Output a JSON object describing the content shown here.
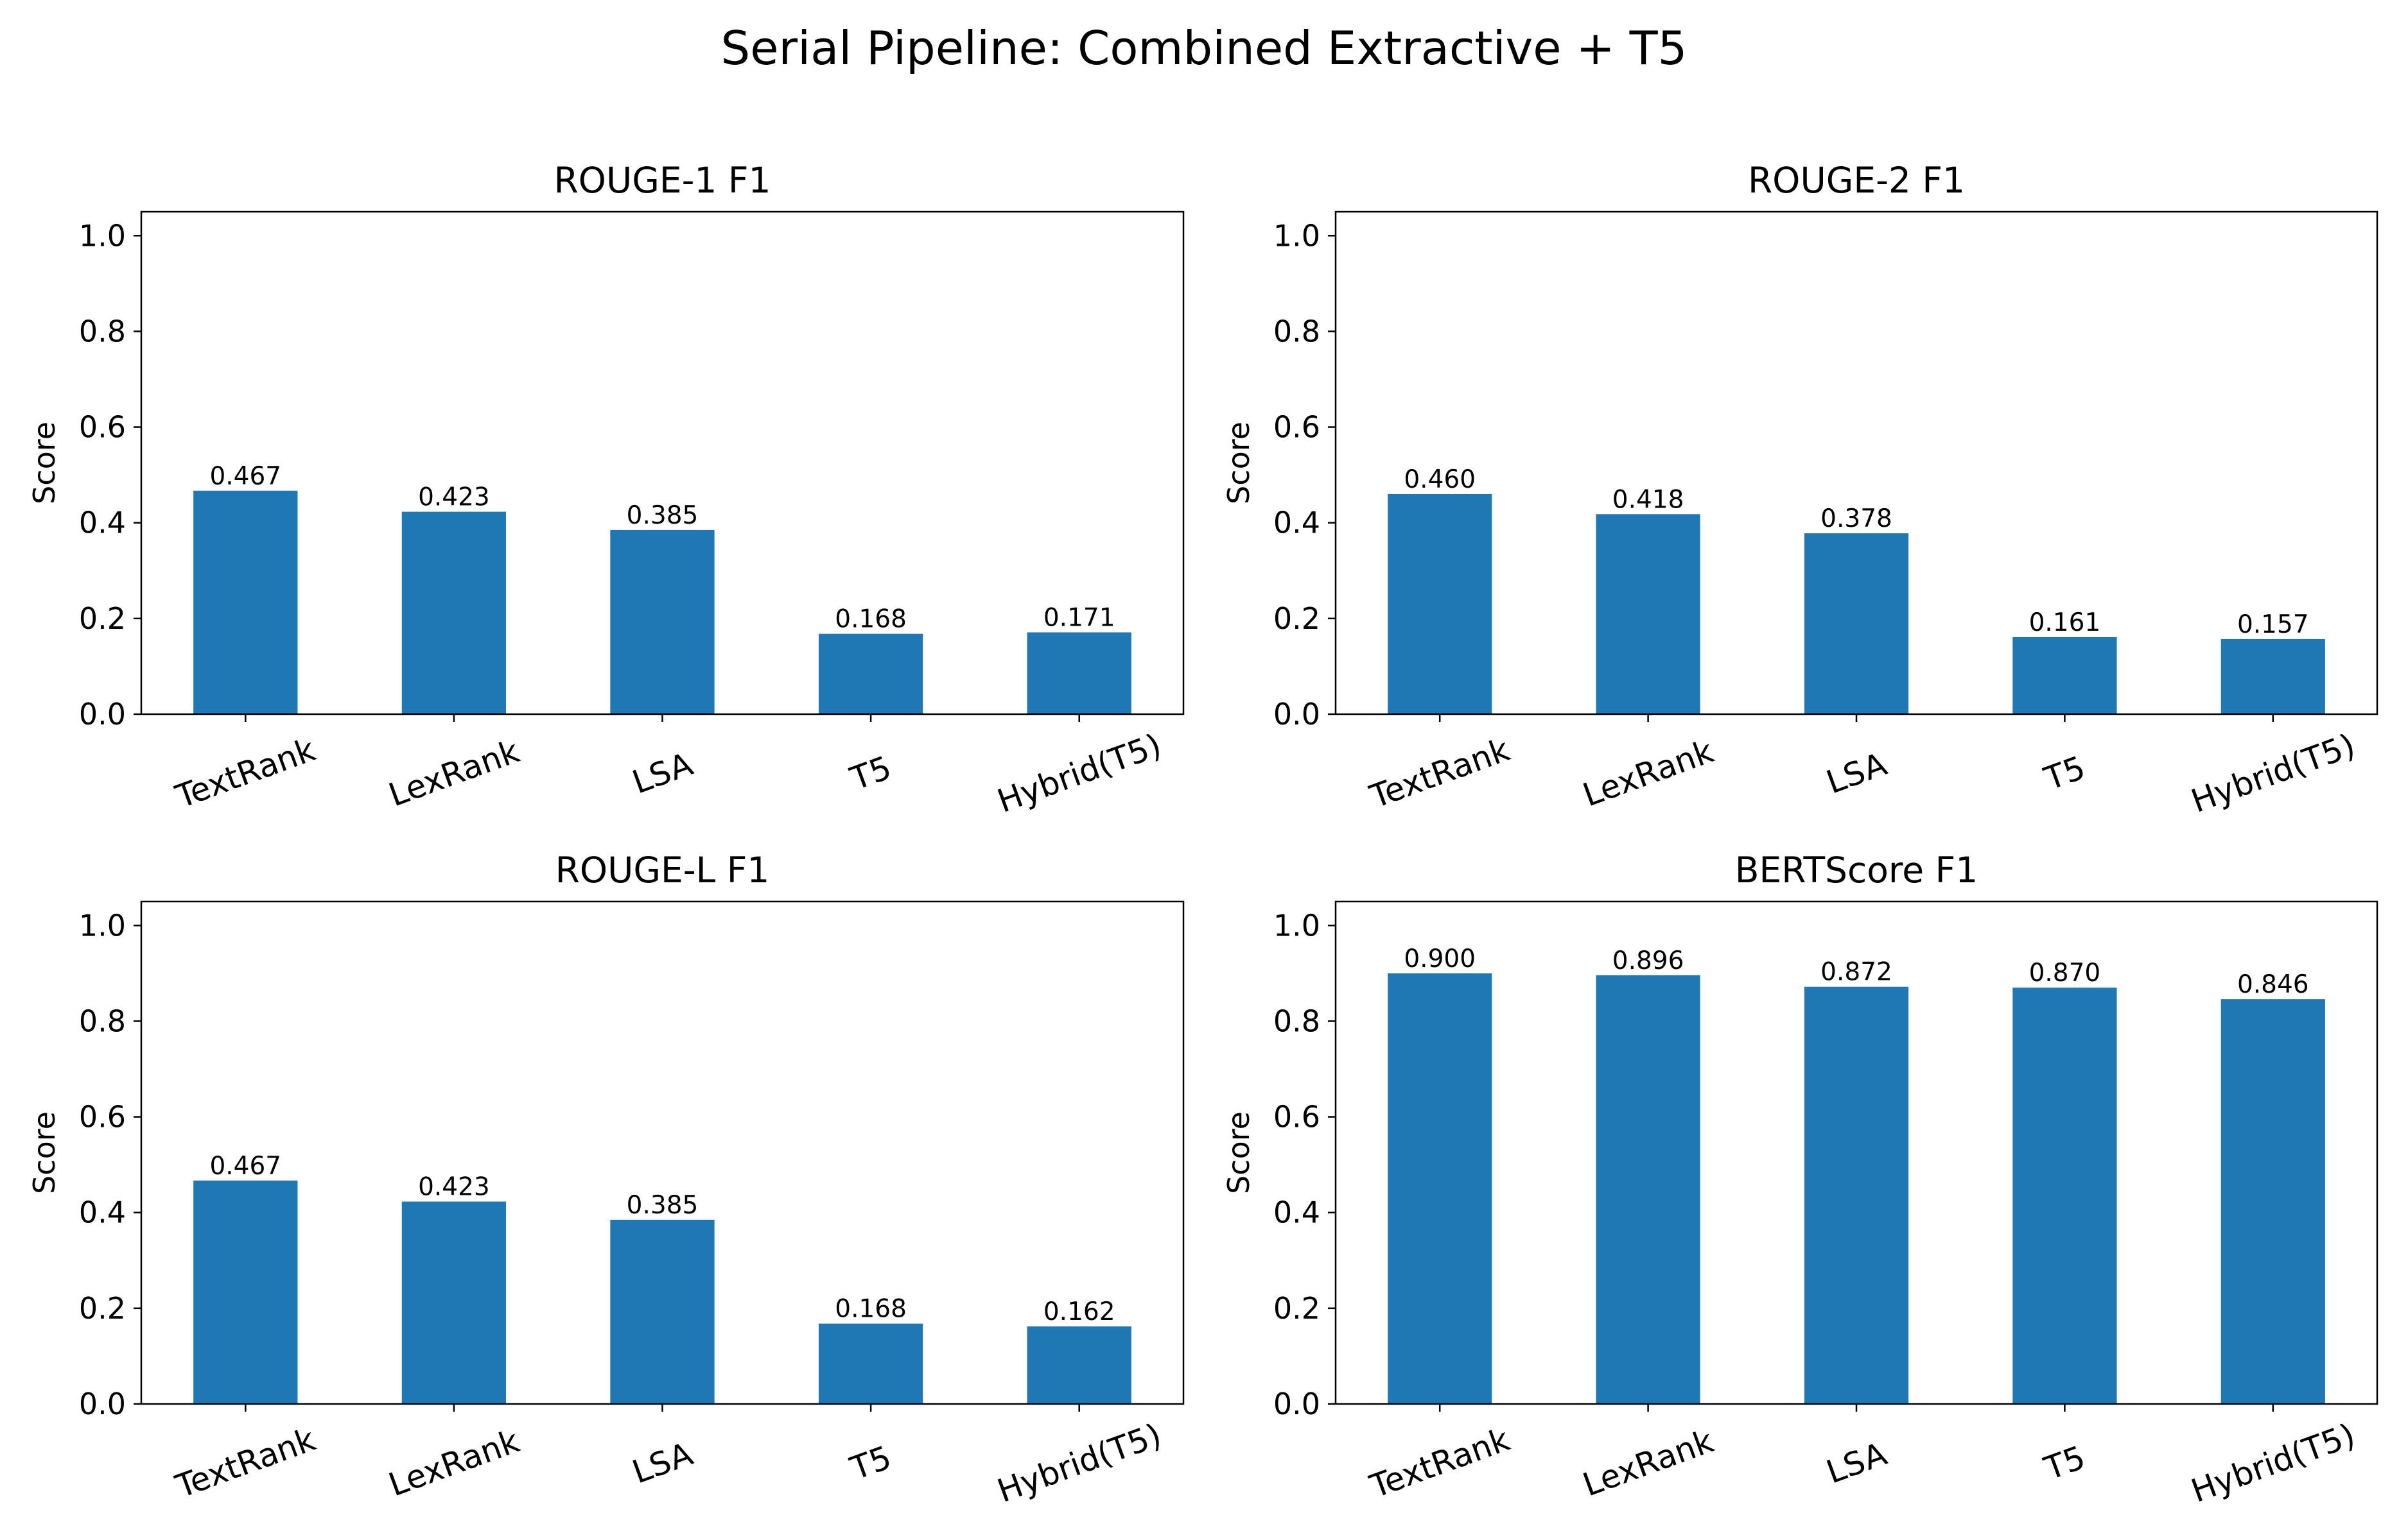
{
  "title": "Serial Pipeline: Combined Extractive + T5",
  "colors": {
    "bar": "#1f77b4",
    "axis": "#000000",
    "background": "#ffffff"
  },
  "chart_data": [
    {
      "type": "bar",
      "title": "ROUGE-1 F1",
      "ylabel": "Score",
      "xlabel": "",
      "ylim": [
        0,
        1.05
      ],
      "yticks": [
        "0.0",
        "0.2",
        "0.4",
        "0.6",
        "0.8",
        "1.0"
      ],
      "grid": false,
      "categories": [
        "TextRank",
        "LexRank",
        "LSA",
        "T5",
        "Hybrid(T5)"
      ],
      "values": [
        0.467,
        0.423,
        0.385,
        0.168,
        0.171
      ],
      "labels": [
        "0.467",
        "0.423",
        "0.385",
        "0.168",
        "0.171"
      ]
    },
    {
      "type": "bar",
      "title": "ROUGE-2 F1",
      "ylabel": "Score",
      "xlabel": "",
      "ylim": [
        0,
        1.05
      ],
      "yticks": [
        "0.0",
        "0.2",
        "0.4",
        "0.6",
        "0.8",
        "1.0"
      ],
      "grid": false,
      "categories": [
        "TextRank",
        "LexRank",
        "LSA",
        "T5",
        "Hybrid(T5)"
      ],
      "values": [
        0.46,
        0.418,
        0.378,
        0.161,
        0.157
      ],
      "labels": [
        "0.460",
        "0.418",
        "0.378",
        "0.161",
        "0.157"
      ]
    },
    {
      "type": "bar",
      "title": "ROUGE-L F1",
      "ylabel": "Score",
      "xlabel": "",
      "ylim": [
        0,
        1.05
      ],
      "yticks": [
        "0.0",
        "0.2",
        "0.4",
        "0.6",
        "0.8",
        "1.0"
      ],
      "grid": false,
      "categories": [
        "TextRank",
        "LexRank",
        "LSA",
        "T5",
        "Hybrid(T5)"
      ],
      "values": [
        0.467,
        0.423,
        0.385,
        0.168,
        0.162
      ],
      "labels": [
        "0.467",
        "0.423",
        "0.385",
        "0.168",
        "0.162"
      ]
    },
    {
      "type": "bar",
      "title": "BERTScore F1",
      "ylabel": "Score",
      "xlabel": "",
      "ylim": [
        0,
        1.05
      ],
      "yticks": [
        "0.0",
        "0.2",
        "0.4",
        "0.6",
        "0.8",
        "1.0"
      ],
      "grid": false,
      "categories": [
        "TextRank",
        "LexRank",
        "LSA",
        "T5",
        "Hybrid(T5)"
      ],
      "values": [
        0.9,
        0.896,
        0.872,
        0.87,
        0.846
      ],
      "labels": [
        "0.900",
        "0.896",
        "0.872",
        "0.870",
        "0.846"
      ]
    }
  ]
}
